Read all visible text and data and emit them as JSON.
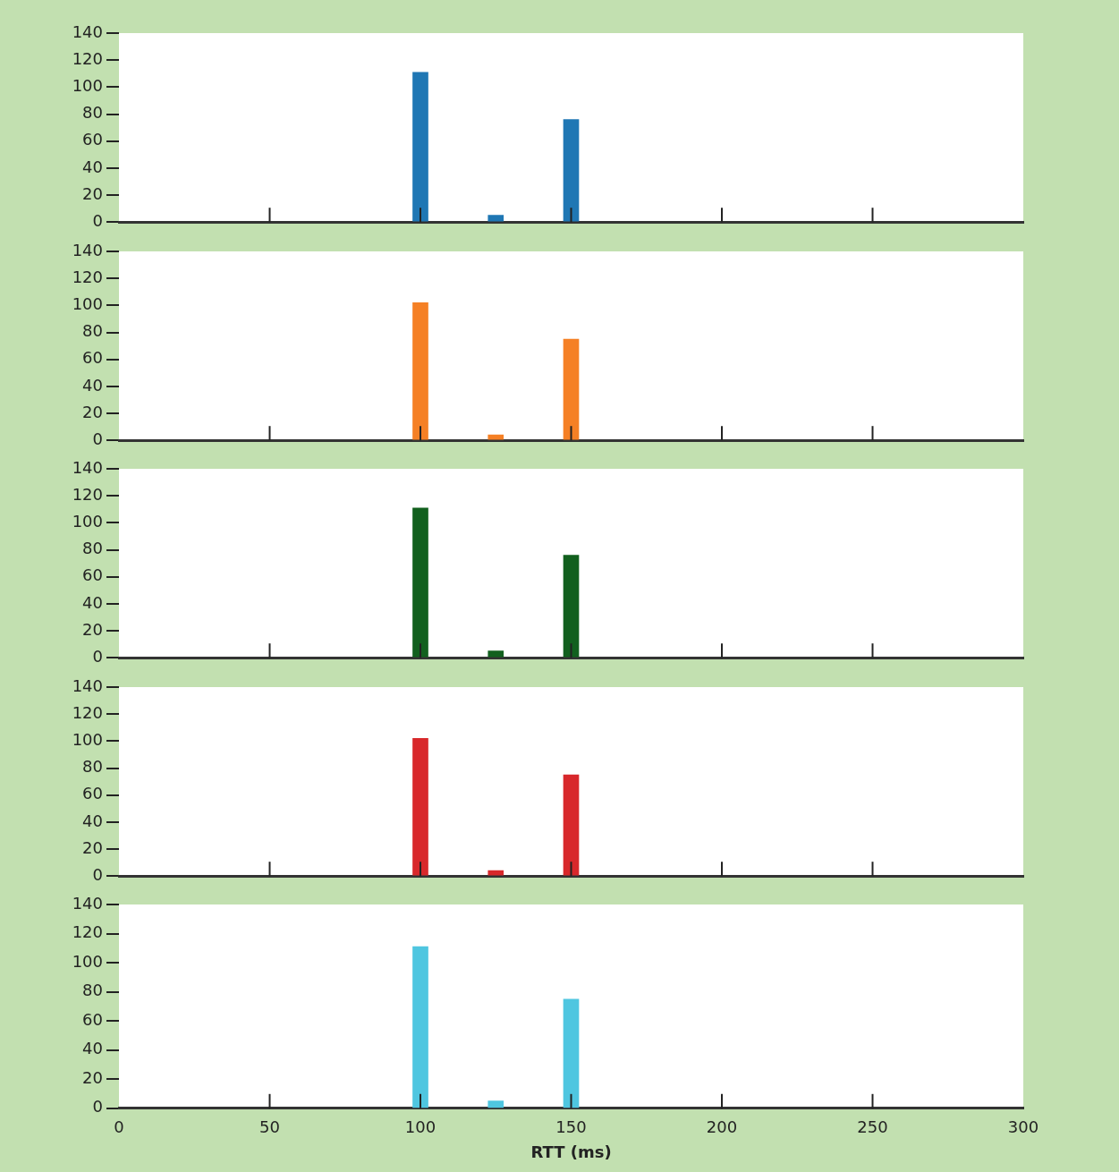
{
  "chart_data": [
    {
      "type": "bar",
      "x": [
        100,
        125,
        150
      ],
      "values": [
        111,
        5,
        76
      ],
      "color": "#1f77b4",
      "xlim": [
        0,
        300
      ],
      "xticks": [
        0,
        50,
        100,
        150,
        200,
        250,
        300
      ],
      "ylim": [
        0,
        140
      ],
      "yticks": [
        0,
        20,
        40,
        60,
        80,
        100,
        120,
        140
      ],
      "tick_labels": "y"
    },
    {
      "type": "bar",
      "x": [
        100,
        125,
        150
      ],
      "values": [
        102,
        4,
        75
      ],
      "color": "#f58025",
      "xlim": [
        0,
        300
      ],
      "xticks": [
        0,
        50,
        100,
        150,
        200,
        250,
        300
      ],
      "ylim": [
        0,
        140
      ],
      "yticks": [
        0,
        20,
        40,
        60,
        80,
        100,
        120,
        140
      ],
      "tick_labels": "y"
    },
    {
      "type": "bar",
      "x": [
        100,
        125,
        150
      ],
      "values": [
        111,
        5,
        76
      ],
      "color": "#12601e",
      "xlim": [
        0,
        300
      ],
      "xticks": [
        0,
        50,
        100,
        150,
        200,
        250,
        300
      ],
      "ylim": [
        0,
        140
      ],
      "yticks": [
        0,
        20,
        40,
        60,
        80,
        100,
        120,
        140
      ],
      "tick_labels": "y"
    },
    {
      "type": "bar",
      "x": [
        100,
        125,
        150
      ],
      "values": [
        102,
        4,
        75
      ],
      "color": "#d8282b",
      "xlim": [
        0,
        300
      ],
      "xticks": [
        0,
        50,
        100,
        150,
        200,
        250,
        300
      ],
      "ylim": [
        0,
        140
      ],
      "yticks": [
        0,
        20,
        40,
        60,
        80,
        100,
        120,
        140
      ],
      "tick_labels": "y"
    },
    {
      "type": "bar",
      "x": [
        100,
        125,
        150
      ],
      "values": [
        111,
        5,
        75
      ],
      "color": "#4fc6e0",
      "xlim": [
        0,
        300
      ],
      "xticks": [
        0,
        50,
        100,
        150,
        200,
        250,
        300
      ],
      "ylim": [
        0,
        140
      ],
      "yticks": [
        0,
        20,
        40,
        60,
        80,
        100,
        120,
        140
      ],
      "xlabel": "RTT (ms)"
    }
  ]
}
